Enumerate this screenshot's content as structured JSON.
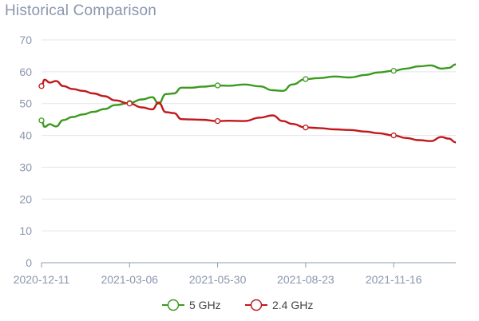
{
  "chart_data": {
    "type": "line",
    "title": "Historical Comparison",
    "xlabel": "",
    "ylabel": "",
    "ylim": [
      0,
      70
    ],
    "yticks": [
      0,
      10,
      20,
      30,
      40,
      50,
      60,
      70
    ],
    "xticks": [
      "2020-12-11",
      "2021-03-06",
      "2021-05-30",
      "2021-08-23",
      "2021-11-16"
    ],
    "x_range": [
      "2020-12-11",
      "2022-01-15"
    ],
    "grid": "horizontal",
    "legend_position": "bottom-center",
    "series": [
      {
        "name": "5 GHz",
        "color": "#3a9a1e",
        "x": [
          "2020-12-11",
          "2020-12-14",
          "2020-12-19",
          "2020-12-25",
          "2021-01-01",
          "2021-01-10",
          "2021-01-20",
          "2021-01-30",
          "2021-02-10",
          "2021-02-20",
          "2021-03-06",
          "2021-03-18",
          "2021-03-28",
          "2021-04-03",
          "2021-04-10",
          "2021-04-18",
          "2021-04-25",
          "2021-05-05",
          "2021-05-15",
          "2021-05-30",
          "2021-06-10",
          "2021-06-25",
          "2021-07-10",
          "2021-07-22",
          "2021-08-01",
          "2021-08-10",
          "2021-08-23",
          "2021-09-05",
          "2021-09-20",
          "2021-10-05",
          "2021-10-20",
          "2021-11-01",
          "2021-11-16",
          "2021-11-28",
          "2021-12-10",
          "2021-12-22",
          "2022-01-01",
          "2022-01-08",
          "2022-01-15"
        ],
        "values": [
          44.7,
          42.7,
          43.5,
          42.8,
          44.8,
          45.8,
          46.6,
          47.4,
          48.3,
          49.5,
          50.2,
          51.3,
          52.0,
          50.0,
          53.0,
          53.2,
          55.0,
          55.0,
          55.3,
          55.7,
          55.6,
          56.0,
          55.4,
          54.2,
          54.0,
          56.0,
          57.7,
          58.0,
          58.5,
          58.2,
          59.0,
          59.8,
          60.3,
          61.0,
          61.7,
          62.0,
          61.0,
          61.2,
          62.3
        ]
      },
      {
        "name": "2.4 GHz",
        "color": "#c0181c",
        "x": [
          "2020-12-11",
          "2020-12-14",
          "2020-12-19",
          "2020-12-25",
          "2021-01-01",
          "2021-01-10",
          "2021-01-20",
          "2021-01-30",
          "2021-02-10",
          "2021-02-20",
          "2021-03-06",
          "2021-03-18",
          "2021-03-28",
          "2021-04-03",
          "2021-04-10",
          "2021-04-18",
          "2021-04-25",
          "2021-05-05",
          "2021-05-15",
          "2021-05-30",
          "2021-06-10",
          "2021-06-25",
          "2021-07-10",
          "2021-07-22",
          "2021-08-01",
          "2021-08-10",
          "2021-08-23",
          "2021-09-05",
          "2021-09-20",
          "2021-10-05",
          "2021-10-20",
          "2021-11-01",
          "2021-11-16",
          "2021-11-28",
          "2021-12-10",
          "2021-12-22",
          "2022-01-01",
          "2022-01-08",
          "2022-01-15"
        ],
        "values": [
          55.5,
          57.5,
          56.6,
          57.1,
          55.5,
          54.6,
          54.0,
          53.2,
          52.3,
          51.0,
          50.0,
          48.8,
          48.2,
          50.3,
          47.3,
          47.0,
          45.1,
          45.0,
          44.9,
          44.5,
          44.6,
          44.5,
          45.6,
          46.3,
          44.5,
          43.6,
          42.5,
          42.3,
          41.9,
          41.7,
          41.2,
          40.7,
          40.0,
          39.2,
          38.5,
          38.2,
          39.5,
          39.0,
          37.8
        ]
      }
    ],
    "markers": [
      {
        "series": 0,
        "x": "2020-12-11",
        "y": 44.7
      },
      {
        "series": 0,
        "x": "2021-03-06",
        "y": 50.2
      },
      {
        "series": 0,
        "x": "2021-05-30",
        "y": 55.7
      },
      {
        "series": 0,
        "x": "2021-08-23",
        "y": 57.7
      },
      {
        "series": 0,
        "x": "2021-11-16",
        "y": 60.3
      },
      {
        "series": 1,
        "x": "2020-12-11",
        "y": 55.5
      },
      {
        "series": 1,
        "x": "2021-03-06",
        "y": 50.0
      },
      {
        "series": 1,
        "x": "2021-05-30",
        "y": 44.5
      },
      {
        "series": 1,
        "x": "2021-08-23",
        "y": 42.5
      },
      {
        "series": 1,
        "x": "2021-11-16",
        "y": 40.0
      }
    ],
    "colors": {
      "axis_text": "#8a96ad",
      "grid": "#e3e5ea",
      "axis_line": "#8f9bb0",
      "legend_text": "#444444"
    }
  }
}
